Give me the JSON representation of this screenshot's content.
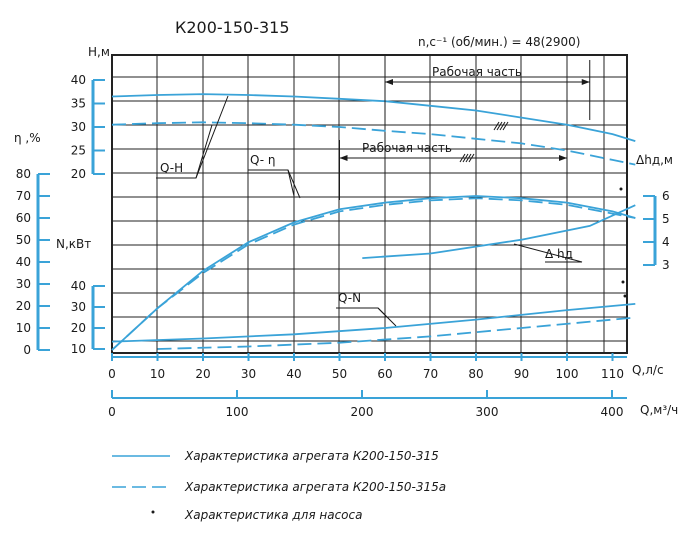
{
  "title": "К200-150-315",
  "speed_label": "n,c⁻¹ (об/мин.) = 48(2900)",
  "zones": {
    "upper": "Рабочая часть",
    "lower": "Рабочая часть"
  },
  "axes": {
    "H": {
      "label": "H,м",
      "ticks": [
        20,
        25,
        30,
        35,
        40
      ]
    },
    "eta": {
      "label": "η ,%",
      "ticks": [
        0,
        10,
        20,
        30,
        40,
        50,
        60,
        70,
        80
      ]
    },
    "N": {
      "label": "N,кВт",
      "ticks": [
        10,
        20,
        30,
        40
      ]
    },
    "dh": {
      "label": "Δhд,м",
      "ticks": [
        3,
        4,
        5,
        6
      ]
    },
    "Q_ls": {
      "label": "Q,л/с",
      "ticks": [
        0,
        10,
        20,
        30,
        40,
        50,
        60,
        70,
        80,
        90,
        100,
        110
      ]
    },
    "Q_m3h": {
      "label": "Q,м³/ч",
      "ticks": [
        0,
        100,
        200,
        300,
        400
      ]
    }
  },
  "curve_labels": {
    "qh": "Q-H",
    "qeta": "Q- η",
    "qn": "Q-N",
    "dh": "Δ hд"
  },
  "legend": [
    {
      "text": "Характеристика агрегата К200-150-315",
      "style": "solid"
    },
    {
      "text": "Характеристика агрегата К200-150-315а",
      "style": "dashed"
    },
    {
      "text": "Характеристика для насоса",
      "style": "dot"
    }
  ],
  "colors": {
    "curve": "#3aa3d8",
    "grid": "#222222",
    "text": "#1a1a1a"
  },
  "chart_data": {
    "type": "line",
    "title": "К200-150-315",
    "xlabel": "Q,л/с",
    "xlim": [
      0,
      115
    ],
    "series": [
      {
        "name": "Q-H",
        "axis": "H,м",
        "style": "solid",
        "x": [
          0,
          10,
          20,
          30,
          40,
          50,
          60,
          70,
          80,
          90,
          100,
          110,
          115
        ],
        "y": [
          36.5,
          36.8,
          37,
          36.8,
          36.5,
          36,
          35.5,
          34.5,
          33.5,
          32,
          30.5,
          28.5,
          27
        ]
      },
      {
        "name": "Q-H",
        "axis": "H,м",
        "style": "dashed",
        "x": [
          0,
          10,
          20,
          30,
          40,
          50,
          60,
          70,
          80,
          90,
          100,
          110,
          115
        ],
        "y": [
          30.5,
          30.8,
          31,
          30.8,
          30.5,
          30,
          29.2,
          28.5,
          27.5,
          26.5,
          25,
          23,
          22
        ]
      },
      {
        "name": "Q- η",
        "axis": "η ,%",
        "style": "solid",
        "x": [
          0,
          10,
          20,
          30,
          40,
          50,
          60,
          70,
          80,
          90,
          100,
          110,
          115
        ],
        "y": [
          0,
          19,
          36,
          49,
          58,
          64,
          67,
          69,
          70,
          69,
          67,
          63,
          60
        ]
      },
      {
        "name": "Q- η",
        "axis": "η ,%",
        "style": "dashed",
        "x": [
          0,
          10,
          20,
          30,
          40,
          50,
          60,
          70,
          80,
          90,
          100,
          110,
          115
        ],
        "y": [
          0,
          19,
          35,
          48,
          57,
          63,
          66,
          68,
          69,
          68,
          66,
          62,
          60
        ]
      },
      {
        "name": "Q-N",
        "axis": "N,кВт",
        "style": "solid",
        "x": [
          0,
          20,
          40,
          60,
          80,
          100,
          115
        ],
        "y": [
          13.5,
          15,
          17,
          20,
          24,
          28.5,
          31.5
        ]
      },
      {
        "name": "Q-N",
        "axis": "N,кВт",
        "style": "dashed",
        "x": [
          10,
          30,
          50,
          70,
          90,
          110,
          115
        ],
        "y": [
          10,
          11.2,
          13,
          16,
          20,
          24,
          25
        ]
      },
      {
        "name": "Δ hд",
        "axis": "Δhд,м",
        "style": "solid",
        "x": [
          55,
          70,
          90,
          105,
          115
        ],
        "y": [
          3.3,
          3.5,
          4.1,
          4.7,
          5.6
        ]
      }
    ],
    "working_zones": [
      {
        "label": "Рабочая часть",
        "axis": "H,м",
        "x": [
          60,
          105
        ]
      },
      {
        "label": "Рабочая часть",
        "axis": "η ,%",
        "x": [
          50,
          100
        ]
      }
    ],
    "grid": true
  }
}
